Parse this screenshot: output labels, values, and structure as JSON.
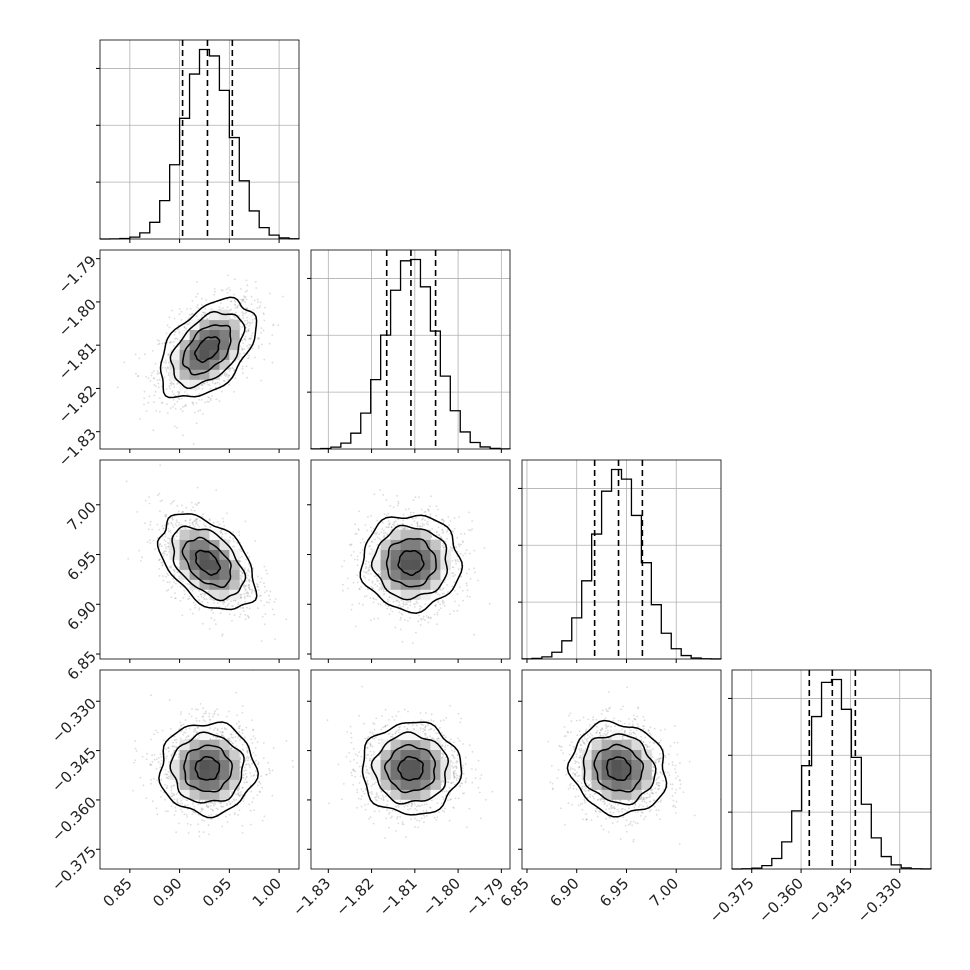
{
  "chart_data": {
    "type": "corner",
    "parameters": [
      {
        "range": [
          0.82,
          1.02
        ],
        "ticks": [
          0.85,
          0.9,
          0.95,
          1.0
        ],
        "tick_labels": [
          "0.85",
          "0.90",
          "0.95",
          "1.00"
        ],
        "mean": 0.928,
        "sd": 0.024,
        "quantiles": [
          0.903,
          0.928,
          0.953
        ]
      },
      {
        "range": [
          -1.834,
          -1.788
        ],
        "ticks": [
          -1.83,
          -1.82,
          -1.81,
          -1.8,
          -1.79
        ],
        "tick_labels": [
          "−1.83",
          "−1.82",
          "−1.81",
          "−1.80",
          "−1.79"
        ],
        "mean": -1.8109,
        "sd": 0.0057,
        "quantiles": [
          -1.8165,
          -1.8109,
          -1.8052
        ]
      },
      {
        "range": [
          6.845,
          7.045
        ],
        "ticks": [
          6.85,
          6.9,
          6.95,
          7.0
        ],
        "tick_labels": [
          "6.85",
          "6.90",
          "6.95",
          "7.00"
        ],
        "mean": 6.942,
        "sd": 0.024,
        "quantiles": [
          6.918,
          6.942,
          6.966
        ]
      },
      {
        "range": [
          -0.381,
          -0.3205
        ],
        "ticks": [
          -0.375,
          -0.36,
          -0.345,
          -0.33
        ],
        "tick_labels": [
          "−0.375",
          "−0.360",
          "−0.345",
          "−0.330"
        ],
        "mean": -0.3505,
        "sd": 0.007,
        "quantiles": [
          -0.3575,
          -0.3505,
          -0.3435
        ]
      }
    ],
    "correlations": [
      {
        "pair": [
          1,
          0
        ],
        "rho": 0.45
      },
      {
        "pair": [
          2,
          0
        ],
        "rho": -0.45
      },
      {
        "pair": [
          2,
          1
        ],
        "rho": 0.0
      },
      {
        "pair": [
          3,
          0
        ],
        "rho": 0.0
      },
      {
        "pair": [
          3,
          1
        ],
        "rho": 0.0
      },
      {
        "pair": [
          3,
          2
        ],
        "rho": -0.1
      }
    ],
    "histogram_bins": 20,
    "contour_levels_sigma": [
      0.5,
      1.0,
      1.5,
      2.0
    ],
    "grid": true,
    "title": "",
    "xlabel": "",
    "ylabel": ""
  }
}
